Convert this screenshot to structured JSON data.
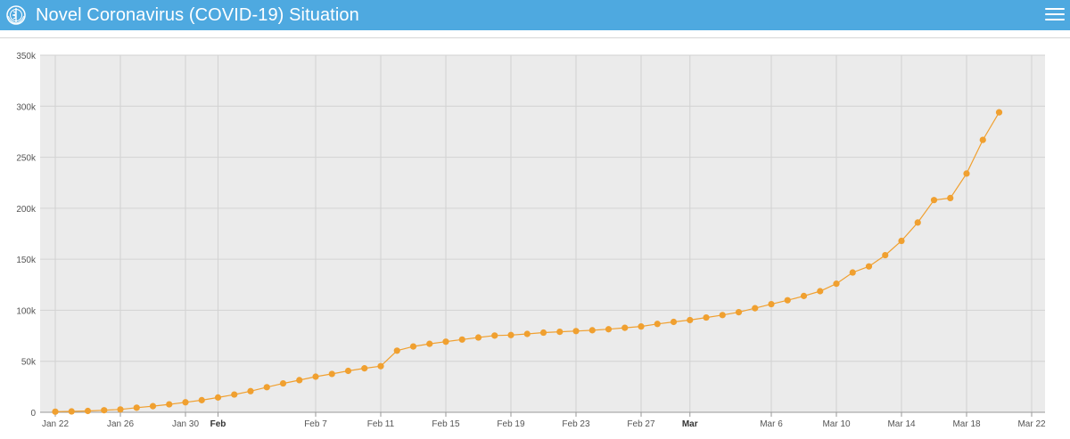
{
  "header": {
    "title": "Novel Coronavirus (COVID-19) Situation",
    "logo_icon": "who-emblem-icon",
    "menu_icon": "hamburger-menu-icon",
    "bar_color": "#4ea9e0"
  },
  "chart_data": {
    "type": "line",
    "title": "",
    "xlabel": "",
    "ylabel": "",
    "series_color": "#f0a030",
    "grid": true,
    "ylim": [
      0,
      350000
    ],
    "y_ticks": [
      {
        "value": 0,
        "label": "0"
      },
      {
        "value": 50000,
        "label": "50k"
      },
      {
        "value": 100000,
        "label": "100k"
      },
      {
        "value": 150000,
        "label": "150k"
      },
      {
        "value": 200000,
        "label": "200k"
      },
      {
        "value": 250000,
        "label": "250k"
      },
      {
        "value": 300000,
        "label": "300k"
      },
      {
        "value": 350000,
        "label": "350k"
      }
    ],
    "x_ticks": [
      {
        "day": 0,
        "label": "Jan 22",
        "bold": false
      },
      {
        "day": 4,
        "label": "Jan 26",
        "bold": false
      },
      {
        "day": 8,
        "label": "Jan 30",
        "bold": false
      },
      {
        "day": 10,
        "label": "Feb",
        "bold": true
      },
      {
        "day": 16,
        "label": "Feb 7",
        "bold": false
      },
      {
        "day": 20,
        "label": "Feb 11",
        "bold": false
      },
      {
        "day": 24,
        "label": "Feb 15",
        "bold": false
      },
      {
        "day": 28,
        "label": "Feb 19",
        "bold": false
      },
      {
        "day": 32,
        "label": "Feb 23",
        "bold": false
      },
      {
        "day": 36,
        "label": "Feb 27",
        "bold": false
      },
      {
        "day": 39,
        "label": "Mar",
        "bold": true
      },
      {
        "day": 44,
        "label": "Mar 6",
        "bold": false
      },
      {
        "day": 48,
        "label": "Mar 10",
        "bold": false
      },
      {
        "day": 52,
        "label": "Mar 14",
        "bold": false
      },
      {
        "day": 56,
        "label": "Mar 18",
        "bold": false
      },
      {
        "day": 60,
        "label": "Mar 22",
        "bold": false
      }
    ],
    "x_start": "Jan 22",
    "x_end": "Mar 22",
    "values": [
      580,
      850,
      1300,
      2000,
      2800,
      4500,
      6000,
      7800,
      9800,
      11900,
      14500,
      17400,
      20700,
      24600,
      28300,
      31500,
      34900,
      37600,
      40600,
      43100,
      45200,
      60400,
      64500,
      67100,
      69200,
      71300,
      73300,
      75200,
      75700,
      76800,
      78100,
      78900,
      79600,
      80400,
      81400,
      82800,
      84100,
      86600,
      88600,
      90400,
      92900,
      95300,
      98100,
      102000,
      106000,
      109800,
      114000,
      118700,
      126000,
      137000,
      143000,
      154000,
      168000,
      186000,
      208000,
      210000,
      234000,
      267000,
      294000
    ]
  }
}
